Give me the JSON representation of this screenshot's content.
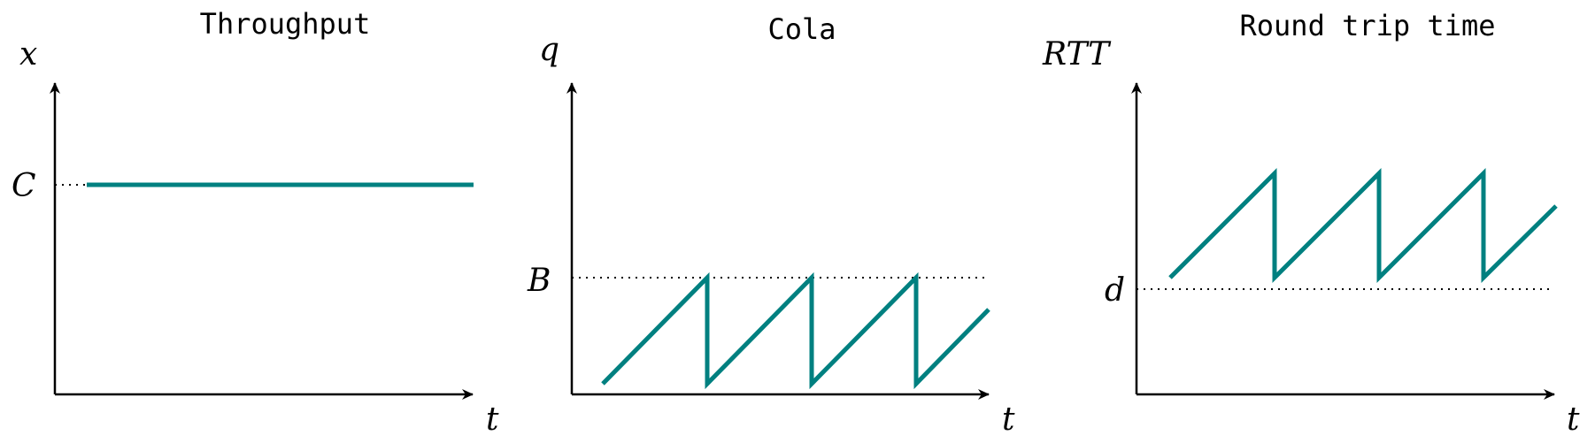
{
  "colors": {
    "trace": "#008080",
    "axis": "#000000"
  },
  "panels": [
    {
      "title": "Throughput",
      "y_label": "x",
      "x_label": "t",
      "guide_label": "C",
      "shape": "constant"
    },
    {
      "title": "Cola",
      "y_label": "q",
      "x_label": "t",
      "guide_label": "B",
      "shape": "sawtooth",
      "teeth": 3
    },
    {
      "title": "Round trip time",
      "y_label": "RTT",
      "x_label": "t",
      "guide_label": "d",
      "shape": "sawtooth",
      "teeth": 3
    }
  ]
}
